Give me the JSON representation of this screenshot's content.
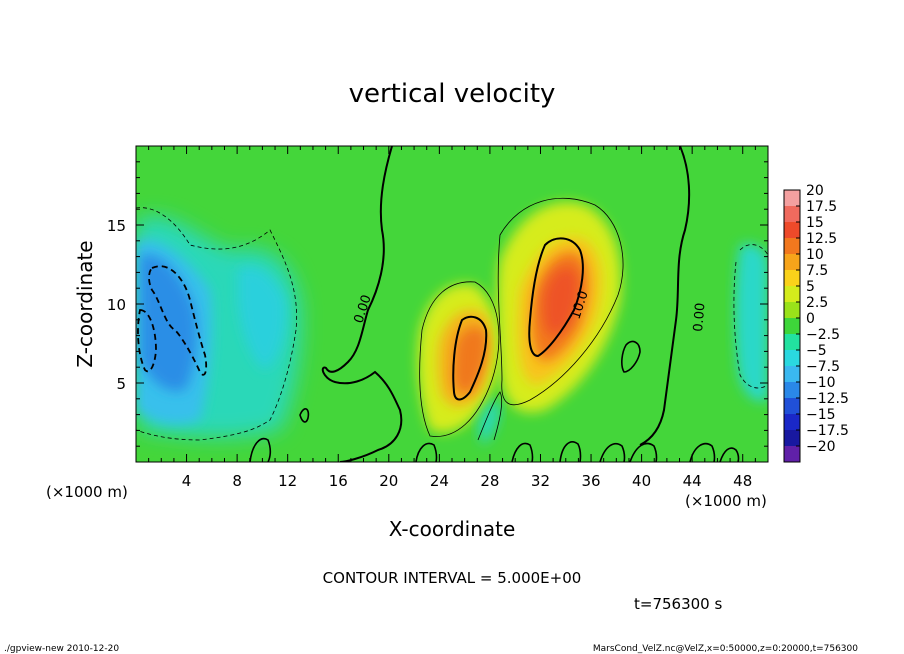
{
  "chart_data": {
    "type": "heatmap",
    "title": "vertical velocity",
    "xlabel": "X-coordinate",
    "ylabel": "Z-coordinate",
    "x_unit_left": "(×1000 m)",
    "x_unit_right": "(×1000 m)",
    "xlim": [
      0,
      50
    ],
    "ylim": [
      0,
      20
    ],
    "x_ticks": [
      4,
      8,
      12,
      16,
      20,
      24,
      28,
      32,
      36,
      40,
      44,
      48
    ],
    "y_ticks": [
      5,
      10,
      15
    ],
    "contour_interval_label": "CONTOUR INTERVAL = 5.000E+00",
    "time_label": "t=756300 s",
    "contour_labels": [
      "0.00",
      "10.0",
      "0.00"
    ],
    "colorbar": {
      "levels": [
        "20",
        "17.5",
        "15",
        "12.5",
        "10",
        "7.5",
        "5",
        "2.5",
        "0",
        "−2.5",
        "−5",
        "−7.5",
        "−10",
        "−12.5",
        "−15",
        "−17.5",
        "−20"
      ],
      "colors": [
        "#f4a0a0",
        "#f06a5e",
        "#ee4a2a",
        "#f2781e",
        "#f7a41a",
        "#fad21a",
        "#d4ec1c",
        "#9ae21a",
        "#3ed63a",
        "#22e2a0",
        "#2ad8e0",
        "#3ab8f0",
        "#2a88e8",
        "#2050d8",
        "#1a28c8",
        "#1818a0",
        "#6020a8"
      ]
    },
    "features": [
      {
        "x": 2.5,
        "z": 9.5,
        "value": -10
      },
      {
        "x": 10,
        "z": 9,
        "value": -5
      },
      {
        "x": 26,
        "z": 7.5,
        "value": 10
      },
      {
        "x": 33.5,
        "z": 10.5,
        "value": 12.5
      },
      {
        "x": 48.5,
        "z": 11,
        "value": -2.5
      }
    ]
  },
  "footer": {
    "left": "./gpview-new   2010-12-20",
    "right": "MarsCond_VelZ.nc@VelZ,x=0:50000,z=0:20000,t=756300"
  }
}
